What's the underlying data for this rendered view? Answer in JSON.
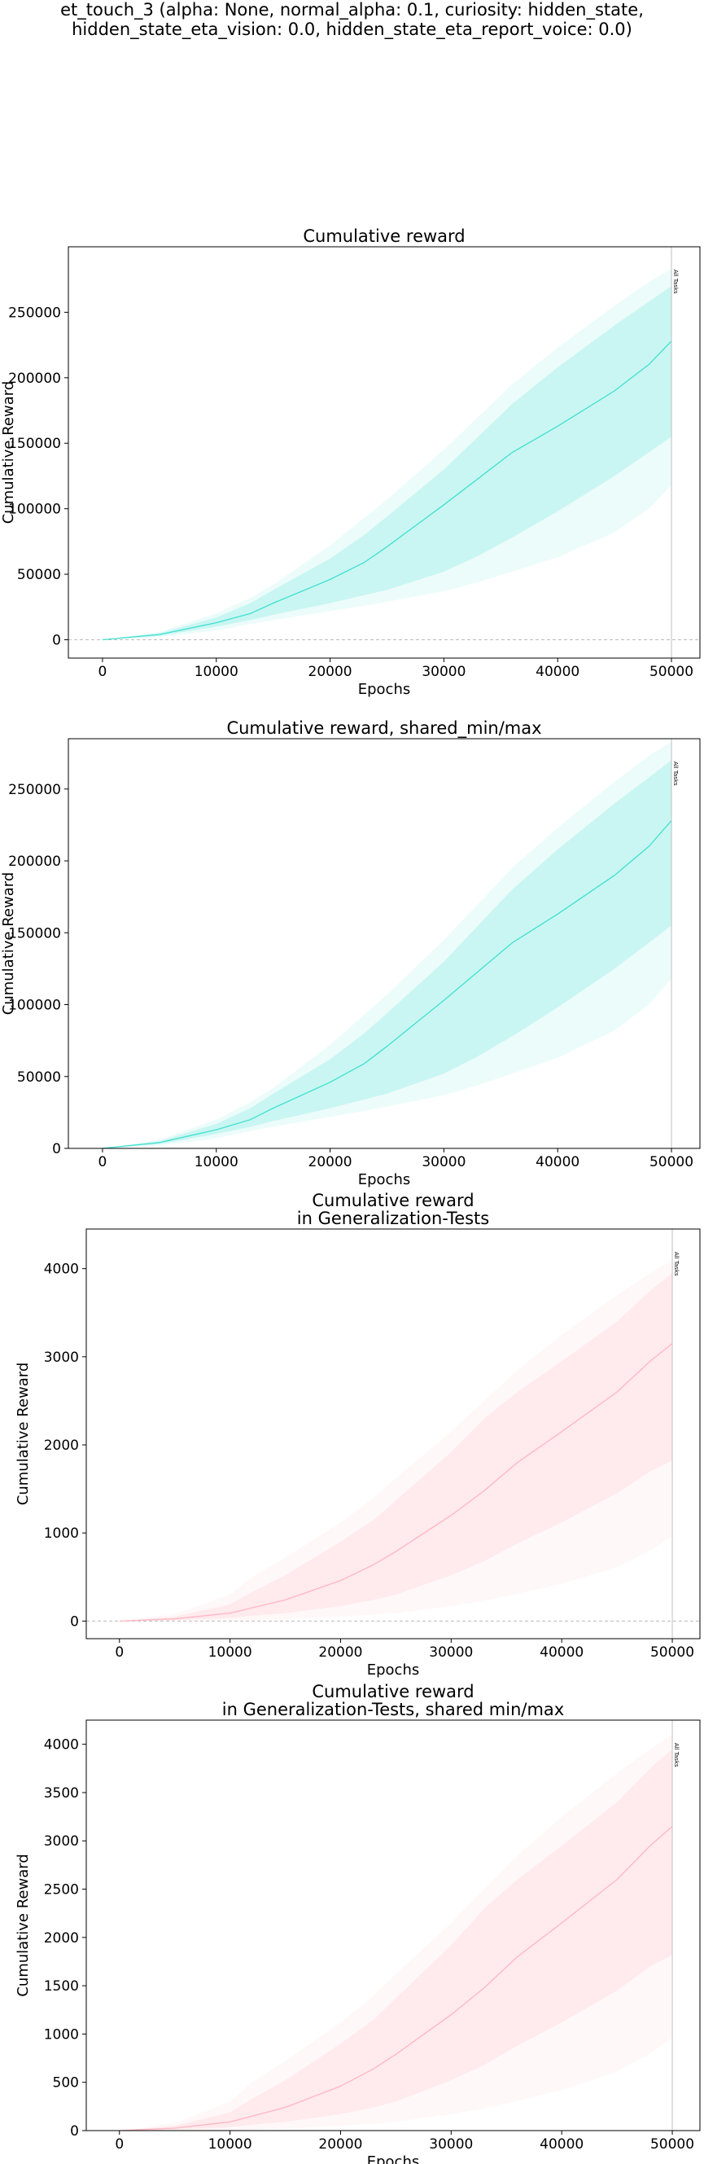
{
  "figure": {
    "suptitle_lines": [
      "et_touch_3 (alpha: None, normal_alpha: 0.1, curiosity: hidden_state,",
      "hidden_state_eta_vision: 0.0, hidden_state_eta_report_voice: 0.0)"
    ]
  },
  "chart_data": [
    {
      "type": "line",
      "title_lines": [
        "Cumulative reward"
      ],
      "xlabel": "Epochs",
      "ylabel": "Cumulative Reward",
      "xlim": [
        -3000,
        52500
      ],
      "ylim": [
        -14000,
        300000
      ],
      "xticks": [
        0,
        10000,
        20000,
        30000,
        40000,
        50000
      ],
      "yticks": [
        0,
        50000,
        100000,
        150000,
        200000,
        250000
      ],
      "zero_line": true,
      "marker": {
        "x": 50000,
        "label": "All Tasks"
      },
      "color": "#40e0d0",
      "x": [
        0,
        5000,
        10000,
        13000,
        15000,
        20000,
        23000,
        25000,
        30000,
        33000,
        36000,
        40000,
        45000,
        48000,
        50000
      ],
      "series": [
        {
          "name": "mean",
          "values": [
            0,
            4000,
            13000,
            20000,
            28000,
            46000,
            59000,
            71000,
            103000,
            123000,
            143000,
            163000,
            190000,
            210000,
            228000
          ]
        },
        {
          "name": "std_low",
          "values": [
            0,
            3000,
            10000,
            15000,
            19000,
            28000,
            34000,
            38000,
            52000,
            64000,
            78000,
            98000,
            125000,
            143000,
            155000
          ]
        },
        {
          "name": "std_high",
          "values": [
            0,
            5000,
            17000,
            28000,
            38000,
            62000,
            80000,
            94000,
            130000,
            155000,
            180000,
            208000,
            240000,
            258000,
            270000
          ]
        },
        {
          "name": "min",
          "values": [
            0,
            2000,
            7000,
            12000,
            15000,
            22000,
            26000,
            29000,
            37000,
            44000,
            52000,
            63000,
            82000,
            100000,
            118000
          ]
        },
        {
          "name": "max",
          "values": [
            0,
            6000,
            20000,
            32000,
            42000,
            72000,
            93000,
            107000,
            145000,
            170000,
            195000,
            223000,
            255000,
            273000,
            283000
          ]
        }
      ]
    },
    {
      "type": "line",
      "title_lines": [
        "Cumulative reward, shared_min/max"
      ],
      "xlabel": "Epochs",
      "ylabel": "Cumulative Reward",
      "xlim": [
        -3000,
        52500
      ],
      "ylim": [
        0,
        285000
      ],
      "xticks": [
        0,
        10000,
        20000,
        30000,
        40000,
        50000
      ],
      "yticks": [
        0,
        50000,
        100000,
        150000,
        200000,
        250000
      ],
      "zero_line": false,
      "marker": {
        "x": 50000,
        "label": "All Tasks"
      },
      "color": "#40e0d0",
      "x": [
        0,
        5000,
        10000,
        13000,
        15000,
        20000,
        23000,
        25000,
        30000,
        33000,
        36000,
        40000,
        45000,
        48000,
        50000
      ],
      "series": [
        {
          "name": "mean",
          "values": [
            0,
            4000,
            13000,
            20000,
            28000,
            46000,
            59000,
            71000,
            103000,
            123000,
            143000,
            163000,
            190000,
            210000,
            228000
          ]
        },
        {
          "name": "std_low",
          "values": [
            0,
            3000,
            10000,
            15000,
            19000,
            28000,
            34000,
            38000,
            52000,
            64000,
            78000,
            98000,
            125000,
            143000,
            155000
          ]
        },
        {
          "name": "std_high",
          "values": [
            0,
            5000,
            17000,
            28000,
            38000,
            62000,
            80000,
            94000,
            130000,
            155000,
            180000,
            208000,
            240000,
            258000,
            270000
          ]
        },
        {
          "name": "min",
          "values": [
            0,
            2000,
            7000,
            12000,
            15000,
            22000,
            26000,
            29000,
            37000,
            44000,
            52000,
            63000,
            82000,
            100000,
            118000
          ]
        },
        {
          "name": "max",
          "values": [
            0,
            6000,
            20000,
            32000,
            42000,
            72000,
            93000,
            107000,
            145000,
            170000,
            195000,
            223000,
            255000,
            273000,
            283000
          ]
        }
      ]
    },
    {
      "type": "line",
      "title_lines": [
        "Cumulative reward",
        "in Generalization-Tests"
      ],
      "xlabel": "Epochs",
      "ylabel": "Cumulative Reward",
      "xlim": [
        -3000,
        52500
      ],
      "ylim": [
        -200,
        4450
      ],
      "xticks": [
        0,
        10000,
        20000,
        30000,
        40000,
        50000
      ],
      "yticks": [
        0,
        1000,
        2000,
        3000,
        4000
      ],
      "zero_line": true,
      "marker": {
        "x": 50000,
        "label": "All Tasks"
      },
      "color": "#ffb6c1",
      "x": [
        0,
        5000,
        10000,
        12000,
        15000,
        20000,
        23000,
        25000,
        30000,
        33000,
        36000,
        40000,
        45000,
        48000,
        50000
      ],
      "series": [
        {
          "name": "mean",
          "values": [
            0,
            25,
            90,
            150,
            240,
            460,
            640,
            790,
            1200,
            1480,
            1800,
            2150,
            2600,
            2950,
            3150
          ]
        },
        {
          "name": "std_low",
          "values": [
            0,
            10,
            35,
            60,
            90,
            170,
            240,
            300,
            520,
            680,
            880,
            1120,
            1450,
            1700,
            1820
          ]
        },
        {
          "name": "std_high",
          "values": [
            0,
            50,
            190,
            330,
            520,
            900,
            1150,
            1370,
            1920,
            2300,
            2600,
            2950,
            3400,
            3750,
            3950
          ]
        },
        {
          "name": "min",
          "values": [
            0,
            0,
            5,
            10,
            20,
            50,
            70,
            90,
            170,
            230,
            310,
            420,
            610,
            800,
            960
          ]
        },
        {
          "name": "max",
          "values": [
            0,
            80,
            300,
            500,
            720,
            1120,
            1400,
            1620,
            2150,
            2500,
            2850,
            3250,
            3700,
            3950,
            4100
          ]
        }
      ]
    },
    {
      "type": "line",
      "title_lines": [
        "Cumulative reward",
        "in Generalization-Tests, shared min/max"
      ],
      "xlabel": "Epochs",
      "ylabel": "Cumulative Reward",
      "xlim": [
        -3000,
        52500
      ],
      "ylim": [
        0,
        4250
      ],
      "xticks": [
        0,
        10000,
        20000,
        30000,
        40000,
        50000
      ],
      "yticks": [
        0,
        500,
        1000,
        1500,
        2000,
        2500,
        3000,
        3500,
        4000
      ],
      "zero_line": false,
      "marker": {
        "x": 50000,
        "label": "All Tasks"
      },
      "color": "#ffb6c1",
      "x": [
        0,
        5000,
        10000,
        12000,
        15000,
        20000,
        23000,
        25000,
        30000,
        33000,
        36000,
        40000,
        45000,
        48000,
        50000
      ],
      "series": [
        {
          "name": "mean",
          "values": [
            0,
            25,
            90,
            150,
            240,
            460,
            640,
            790,
            1200,
            1480,
            1800,
            2150,
            2600,
            2950,
            3150
          ]
        },
        {
          "name": "std_low",
          "values": [
            0,
            10,
            35,
            60,
            90,
            170,
            240,
            300,
            520,
            680,
            880,
            1120,
            1450,
            1700,
            1820
          ]
        },
        {
          "name": "std_high",
          "values": [
            0,
            50,
            190,
            330,
            520,
            900,
            1150,
            1370,
            1920,
            2300,
            2600,
            2950,
            3400,
            3750,
            3950
          ]
        },
        {
          "name": "min",
          "values": [
            0,
            0,
            5,
            10,
            20,
            50,
            70,
            90,
            170,
            230,
            310,
            420,
            610,
            800,
            960
          ]
        },
        {
          "name": "max",
          "values": [
            0,
            80,
            300,
            500,
            720,
            1120,
            1400,
            1620,
            2150,
            2500,
            2850,
            3250,
            3700,
            3950,
            4100
          ]
        }
      ]
    }
  ]
}
